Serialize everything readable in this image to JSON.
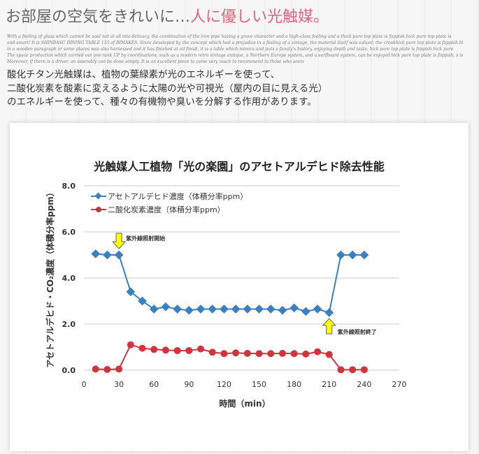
{
  "header": {
    "title_gray": "お部屋の空気をきれいに…",
    "title_pink": "人に優しい光触媒。"
  },
  "decor_text": [
    "With a feeling of glass which cannot be said not at all into delicacy, the combination of the iron pipe having a grave character and a high-class feeling and a thick pure top plate is foppish.hick pure top plate is",
    "and smart! It is SHINBASU DINING TABLE 155 of BIMAKES. Since developed by the concept which had a prejudice in a feeling of a vintage, the material itself was valued, the crookhick pure top plate is foppish.hi",
    "in a wooden paragraph or some places was also harnessed and it has finished at oil finish, it is a table which mimics and puts a family's history, enjoying depth and taste. hick pure top plate is foppish.hick pure",
    "The space production which carried out one rank UP by coordinations, such as a modern retro vintage antique, a Northern Europe system, and a surfboard system, can be enjoyed.hick pure top plate is foppish, s is",
    "Moreover, if there is a driver, an assembly can be done simply. It is an excellent piece to come very much to recommend to those who seem"
  ],
  "description": [
    "酸化チタン光触媒は、植物の葉緑素が光のエネルギーを使って、",
    "二酸化炭素を酸素に変えるように太陽の光や可視光（屋内の目に見える光）",
    "のエネルギーを使って、種々の有機物や臭いを分解する作用があります。"
  ],
  "chart_data": {
    "type": "line",
    "title": "光触媒人工植物「光の楽園」のアセトアルデヒド除去性能",
    "xlabel": "時間（min）",
    "ylabel": "アセトアルデヒド・CO₂濃度（体積分率ppm）",
    "xlim": [
      0,
      270
    ],
    "ylim": [
      0,
      8
    ],
    "xticks": [
      "0",
      "30",
      "60",
      "90",
      "120",
      "150",
      "180",
      "210",
      "240",
      "270"
    ],
    "yticks": [
      "0.0",
      "2.0",
      "4.0",
      "6.0",
      "8.0"
    ],
    "grid": true,
    "legend_position": "top-left",
    "x": [
      10,
      20,
      30,
      40,
      50,
      60,
      70,
      80,
      90,
      100,
      110,
      120,
      130,
      140,
      150,
      160,
      170,
      180,
      190,
      200,
      210,
      220,
      230,
      240
    ],
    "series": [
      {
        "name": "アセトアルデヒド濃度（体積分率ppm）",
        "color": "#3a7fc0",
        "marker": "diamond",
        "values": [
          5.05,
          5.0,
          5.0,
          3.4,
          3.0,
          2.65,
          2.75,
          2.65,
          2.6,
          2.65,
          2.65,
          2.65,
          2.65,
          2.65,
          2.65,
          2.65,
          2.6,
          2.7,
          2.55,
          2.65,
          2.5,
          5.0,
          5.0,
          5.0
        ]
      },
      {
        "name": "二酸化炭素濃度（体積分率ppm）",
        "color": "#d0343e",
        "marker": "circle",
        "values": [
          0.05,
          0.03,
          0.05,
          1.1,
          0.95,
          0.9,
          0.87,
          0.85,
          0.85,
          0.92,
          0.78,
          0.72,
          0.75,
          0.73,
          0.72,
          0.72,
          0.73,
          0.72,
          0.7,
          0.8,
          0.68,
          0.02,
          0.02,
          0.02
        ]
      }
    ],
    "annotations": [
      {
        "text": "紫外線照射開始",
        "x": 30,
        "direction": "down"
      },
      {
        "text": "紫外線照射終了",
        "x": 210,
        "direction": "up"
      }
    ]
  }
}
